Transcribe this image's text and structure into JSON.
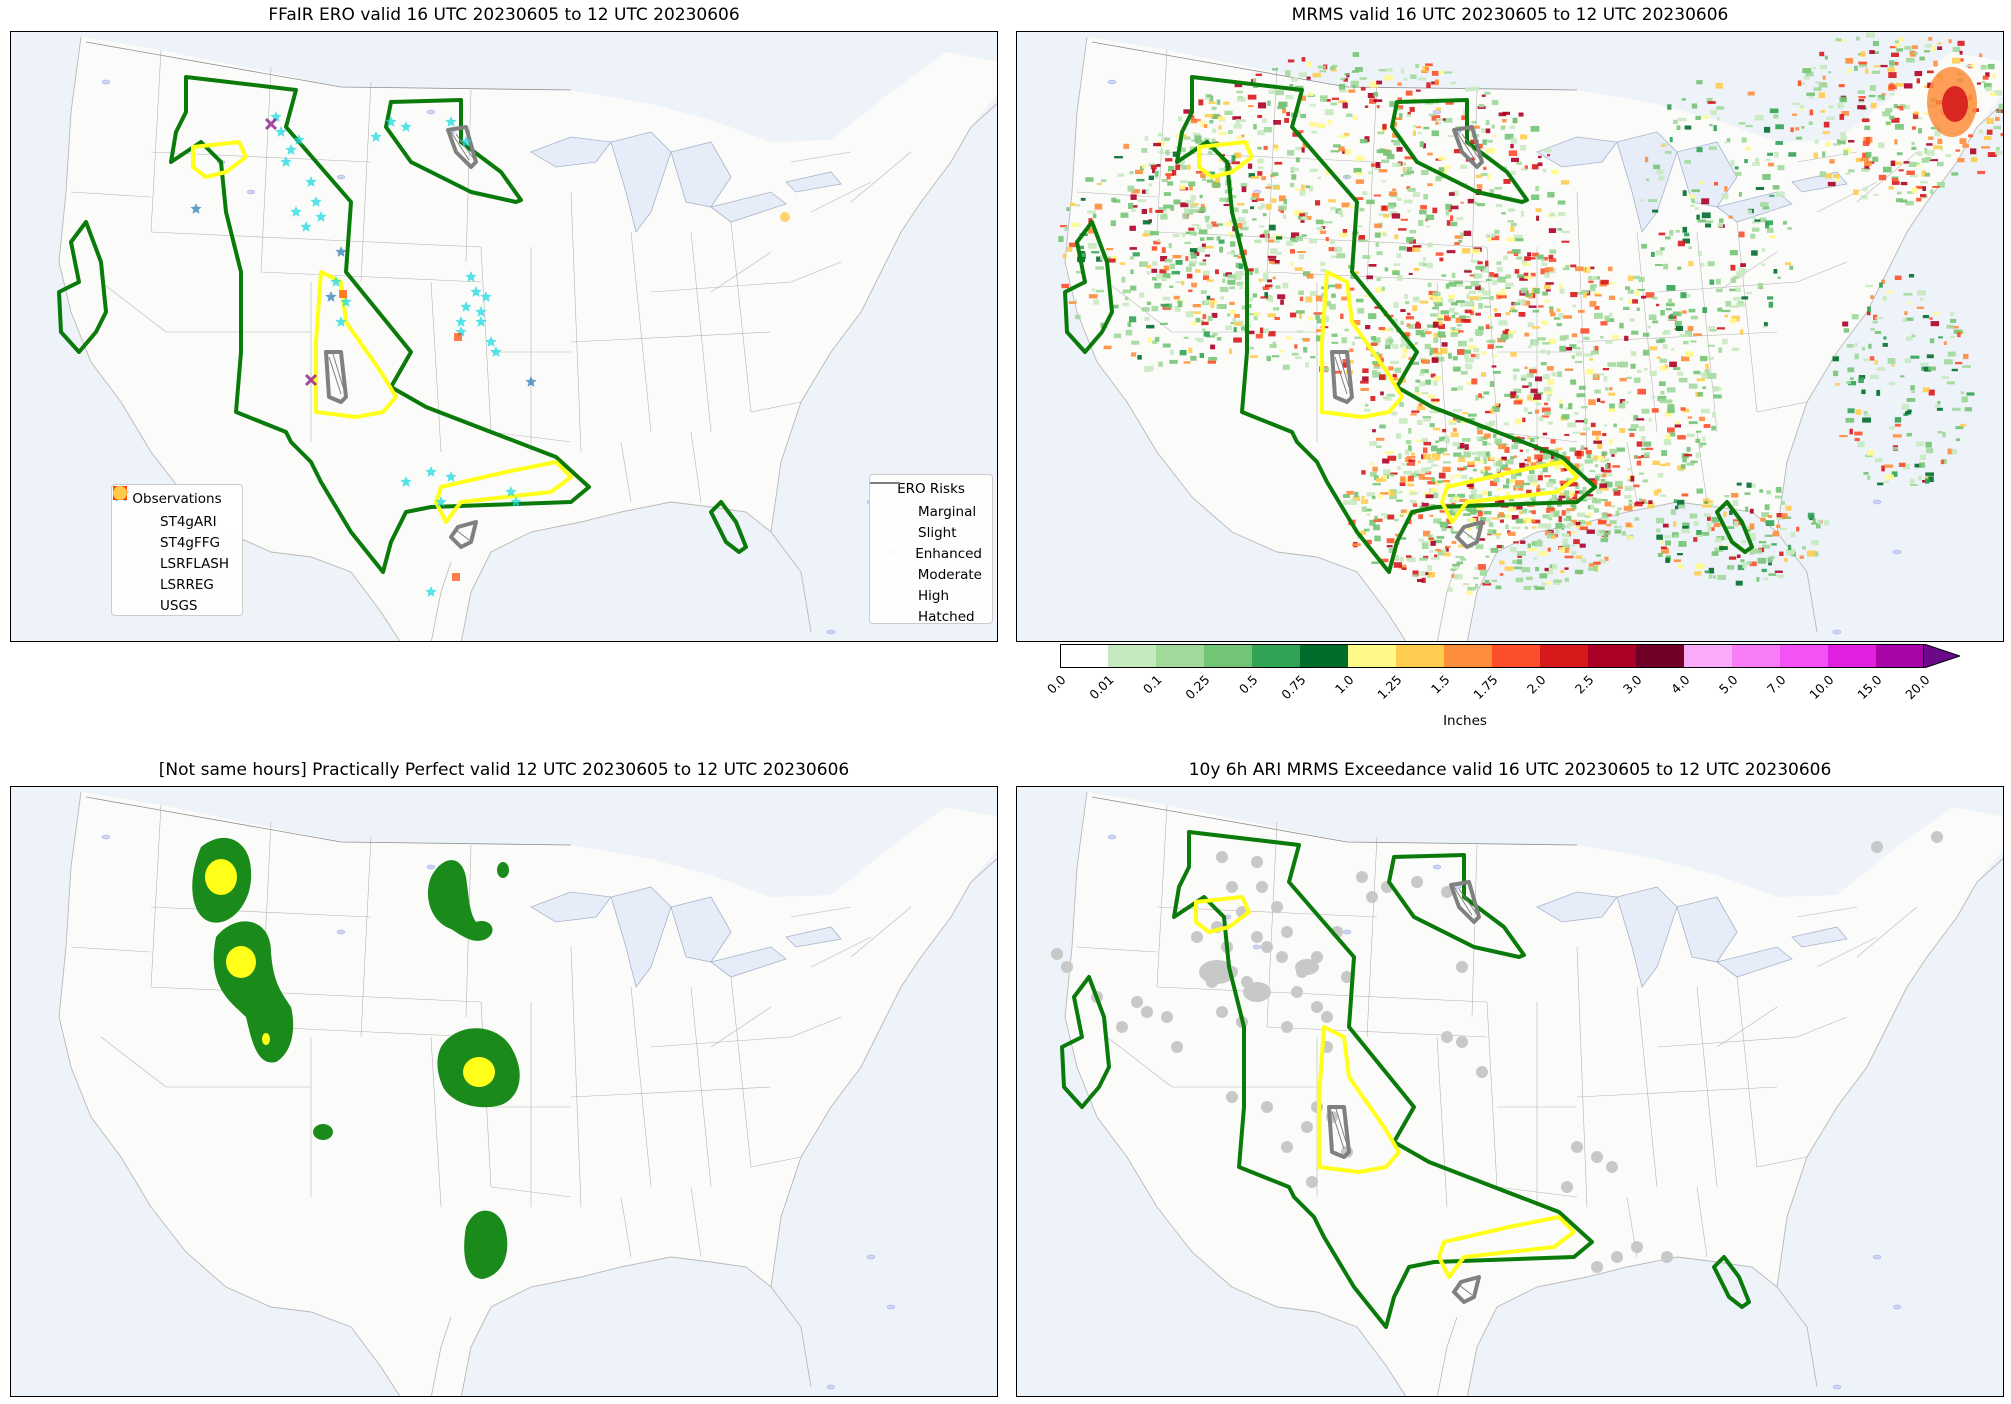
{
  "panels": [
    {
      "id": "ero",
      "title": "FFaIR ERO valid 16 UTC 20230605 to 12 UTC 20230606"
    },
    {
      "id": "mrms",
      "title": "MRMS valid 16 UTC 20230605 to 12 UTC 20230606"
    },
    {
      "id": "pp",
      "title": "[Not same hours] Practically Perfect valid 12 UTC 20230605 to 12 UTC 20230606"
    },
    {
      "id": "ari",
      "title": "10y 6h ARI MRMS Exceedance valid 16 UTC 20230605 to 12 UTC 20230606"
    }
  ],
  "observations_legend": {
    "title": "Observations",
    "items": [
      {
        "label": "ST4gARI",
        "marker": "star",
        "color": "#1f77b4"
      },
      {
        "label": "ST4gFFG",
        "marker": "star",
        "color": "#1fd9e0"
      },
      {
        "label": "LSRFLASH",
        "marker": "x",
        "color": "#800080"
      },
      {
        "label": "LSRREG",
        "marker": "square",
        "color": "#ff4500"
      },
      {
        "label": "USGS",
        "marker": "circle",
        "color": "#ffc94a"
      }
    ]
  },
  "ero_legend": {
    "title": "ERO Risks",
    "items": [
      {
        "label": "Marginal",
        "color": "#008000"
      },
      {
        "label": "Slight",
        "color": "#ffff00"
      },
      {
        "label": "Enhanced",
        "color": "#ff7f0e"
      },
      {
        "label": "Moderate",
        "color": "#e0001a"
      },
      {
        "label": "High",
        "color": "#e000e0"
      },
      {
        "label": "Hatched",
        "color": "#808080"
      }
    ]
  },
  "colorbar": {
    "label": "Inches",
    "ticks": [
      "0.0",
      "0.01",
      "0.1",
      "0.25",
      "0.5",
      "0.75",
      "1.0",
      "1.25",
      "1.5",
      "1.75",
      "2.0",
      "2.5",
      "3.0",
      "4.0",
      "5.0",
      "7.0",
      "10.0",
      "15.0",
      "20.0"
    ],
    "colors": [
      "#ffffff",
      "#c7e9c0",
      "#a1d99b",
      "#74c476",
      "#31a354",
      "#006d2c",
      "#fff989",
      "#ffcc4f",
      "#fe8d3c",
      "#fc4e2a",
      "#d61a1c",
      "#ad0026",
      "#700026",
      "#f9aaf9",
      "#f77ef7",
      "#f552f5",
      "#e021e0",
      "#a804a8"
    ],
    "extend_color": "#6a0a8a"
  },
  "colors": {
    "marginal": "#0a7a0a",
    "slight": "#ffff1a",
    "hatched": "#808080",
    "pp_green": "#1a8a1a",
    "pp_yellow": "#ffff1a",
    "ari_gray": "#c8c8c8",
    "ocean": "#eef3fa",
    "land": "#fbfbf9"
  }
}
